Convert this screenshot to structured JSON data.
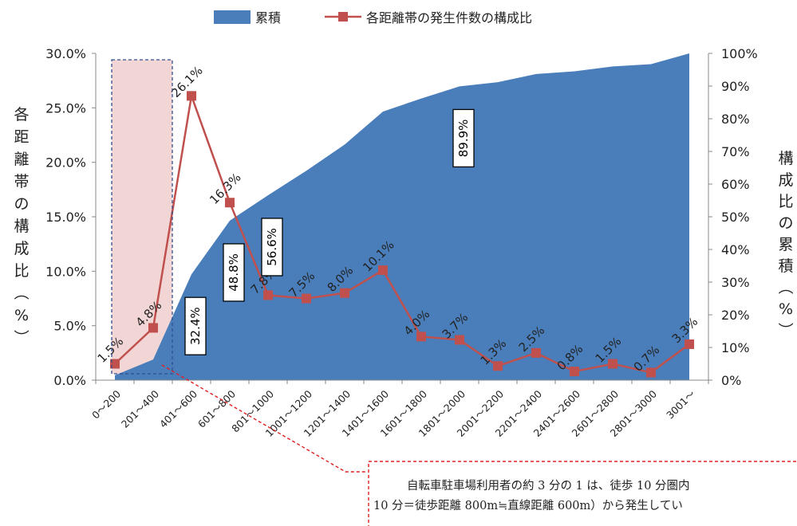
{
  "chart_data": {
    "type": "area+line",
    "categories": [
      "0〜200",
      "201〜400",
      "401〜600",
      "601〜800",
      "801〜1000",
      "1001〜1200",
      "1201〜1400",
      "1401〜1600",
      "1601〜1800",
      "1801〜2000",
      "2001〜2200",
      "2201〜2400",
      "2401〜2600",
      "2601〜2800",
      "2801〜3000",
      "3001〜"
    ],
    "series": [
      {
        "name": "累積",
        "type": "area",
        "axis": "right",
        "color": "#4a7ebb",
        "values": [
          1.5,
          6.3,
          32.4,
          48.8,
          56.6,
          64.1,
          72.1,
          82.2,
          86.2,
          89.9,
          91.2,
          93.7,
          94.5,
          96.0,
          96.7,
          100.0
        ]
      },
      {
        "name": "各距離帯の発生件数の構成比",
        "type": "line",
        "axis": "left",
        "color": "#c0504d",
        "values": [
          1.5,
          4.8,
          26.1,
          16.3,
          7.8,
          7.5,
          8.0,
          10.1,
          4.0,
          3.7,
          1.3,
          2.5,
          0.8,
          1.5,
          0.7,
          3.3
        ],
        "labels": [
          "1.5%",
          "4.8%",
          "26.1%",
          "16.3%",
          "7.8%",
          "7.5%",
          "8.0%",
          "10.1%",
          "4.0%",
          "3.7%",
          "1.3%",
          "2.5%",
          "0.8%",
          "1.5%",
          "0.7%",
          "3.3%"
        ]
      }
    ],
    "boxed_labels": [
      {
        "category": "401〜600",
        "text": "32.4%"
      },
      {
        "category": "601〜800",
        "text": "48.8%"
      },
      {
        "category": "801〜1000",
        "text": "56.6%"
      },
      {
        "category": "1801〜2000",
        "text": "89.9%"
      }
    ],
    "left_axis": {
      "label": "各距離帯の構成比（%）",
      "ylim": [
        0,
        30
      ],
      "ticks": [
        "0.0%",
        "5.0%",
        "10.0%",
        "15.0%",
        "20.0%",
        "25.0%",
        "30.0%"
      ]
    },
    "right_axis": {
      "label": "構成比の累積（%）",
      "ylim": [
        0,
        100
      ],
      "ticks": [
        "0%",
        "10%",
        "20%",
        "30%",
        "40%",
        "50%",
        "60%",
        "70%",
        "80%",
        "90%",
        "100%"
      ]
    },
    "legend_position": "top",
    "highlight": {
      "categories": [
        "0〜200",
        "201〜400"
      ],
      "color": "#f2d5d5"
    }
  },
  "annotation": {
    "line1": "自転車駐車場利用者の約 3 分の 1 は、徒歩 10 分圏内",
    "line2": "10 分＝徒歩距離 800m≒直線距離 600m）から発生してい"
  }
}
